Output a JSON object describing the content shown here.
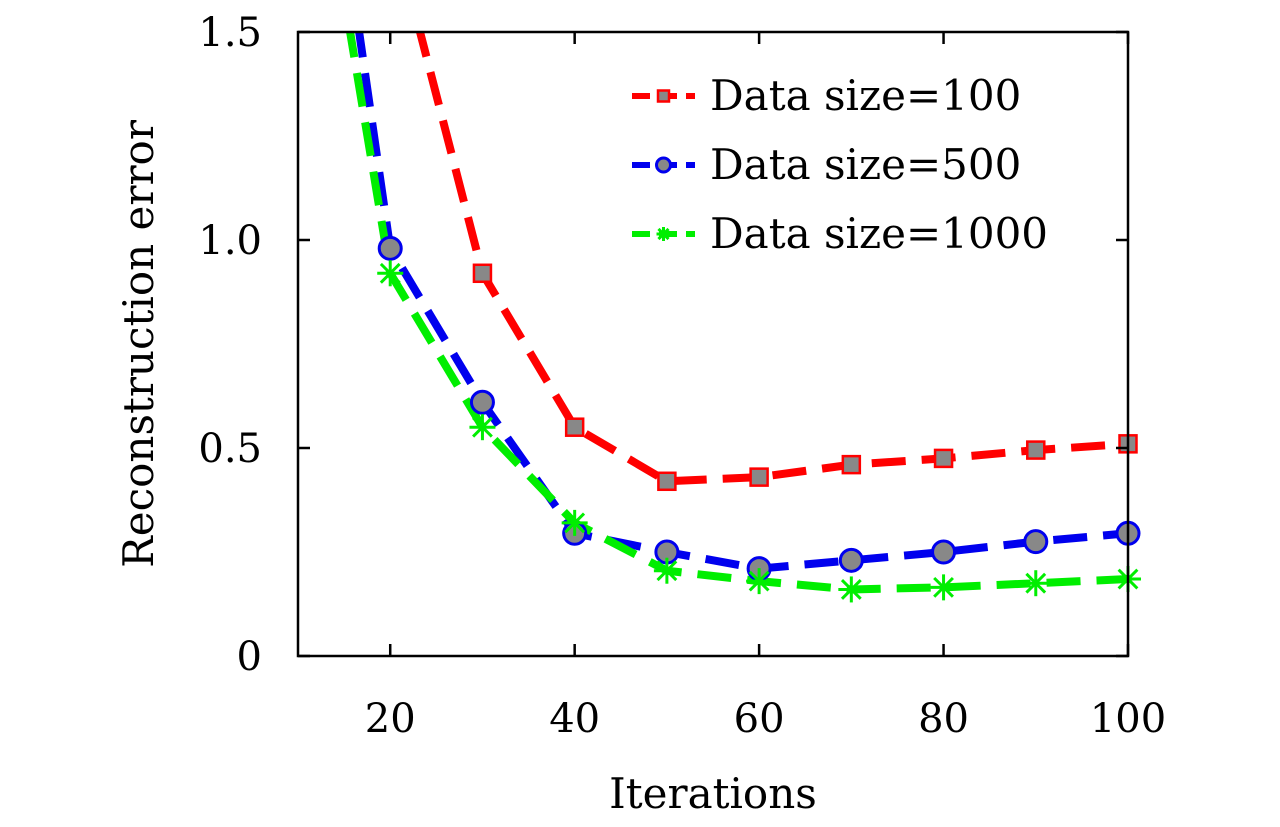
{
  "chart_data": {
    "type": "line",
    "title": "",
    "xlabel": "Iterations",
    "ylabel": "Reconstruction error",
    "xlim": [
      10,
      100
    ],
    "ylim": [
      0,
      1.5
    ],
    "x_ticks": [
      20,
      40,
      60,
      80,
      100
    ],
    "x_tick_labels": [
      "20",
      "40",
      "60",
      "80",
      "100"
    ],
    "y_ticks": [
      0,
      0.5,
      1.0,
      1.5
    ],
    "y_tick_labels": [
      "0",
      "0.5",
      "1.0",
      "1.5"
    ],
    "grid": false,
    "legend_position": "top-right",
    "series": [
      {
        "name": "Data size=100",
        "color": "#ff0000",
        "marker": "square",
        "marker_fill": "#888888",
        "points": [
          [
            23,
            1.52
          ],
          [
            30,
            0.92
          ],
          [
            40,
            0.55
          ],
          [
            50,
            0.42
          ],
          [
            60,
            0.43
          ],
          [
            70,
            0.46
          ],
          [
            80,
            0.475
          ],
          [
            90,
            0.495
          ],
          [
            100,
            0.51
          ]
        ],
        "marker_x": [
          30,
          40,
          50,
          60,
          70,
          80,
          90,
          100
        ]
      },
      {
        "name": "Data size=500",
        "color": "#0000ee",
        "marker": "circle",
        "marker_fill": "#888888",
        "points": [
          [
            16.5,
            1.52
          ],
          [
            20,
            0.98
          ],
          [
            30,
            0.61
          ],
          [
            40,
            0.295
          ],
          [
            50,
            0.25
          ],
          [
            60,
            0.21
          ],
          [
            70,
            0.23
          ],
          [
            80,
            0.25
          ],
          [
            90,
            0.275
          ],
          [
            100,
            0.295
          ]
        ],
        "marker_x": [
          20,
          30,
          40,
          50,
          60,
          70,
          80,
          90,
          100
        ]
      },
      {
        "name": "Data size=1000",
        "color": "#00ee00",
        "marker": "star",
        "marker_fill": "#00ee00",
        "points": [
          [
            15.5,
            1.52
          ],
          [
            20,
            0.92
          ],
          [
            30,
            0.55
          ],
          [
            40,
            0.32
          ],
          [
            50,
            0.205
          ],
          [
            60,
            0.18
          ],
          [
            70,
            0.16
          ],
          [
            80,
            0.165
          ],
          [
            90,
            0.175
          ],
          [
            100,
            0.185
          ]
        ],
        "marker_x": [
          20,
          30,
          40,
          50,
          60,
          70,
          80,
          90,
          100
        ]
      }
    ]
  }
}
